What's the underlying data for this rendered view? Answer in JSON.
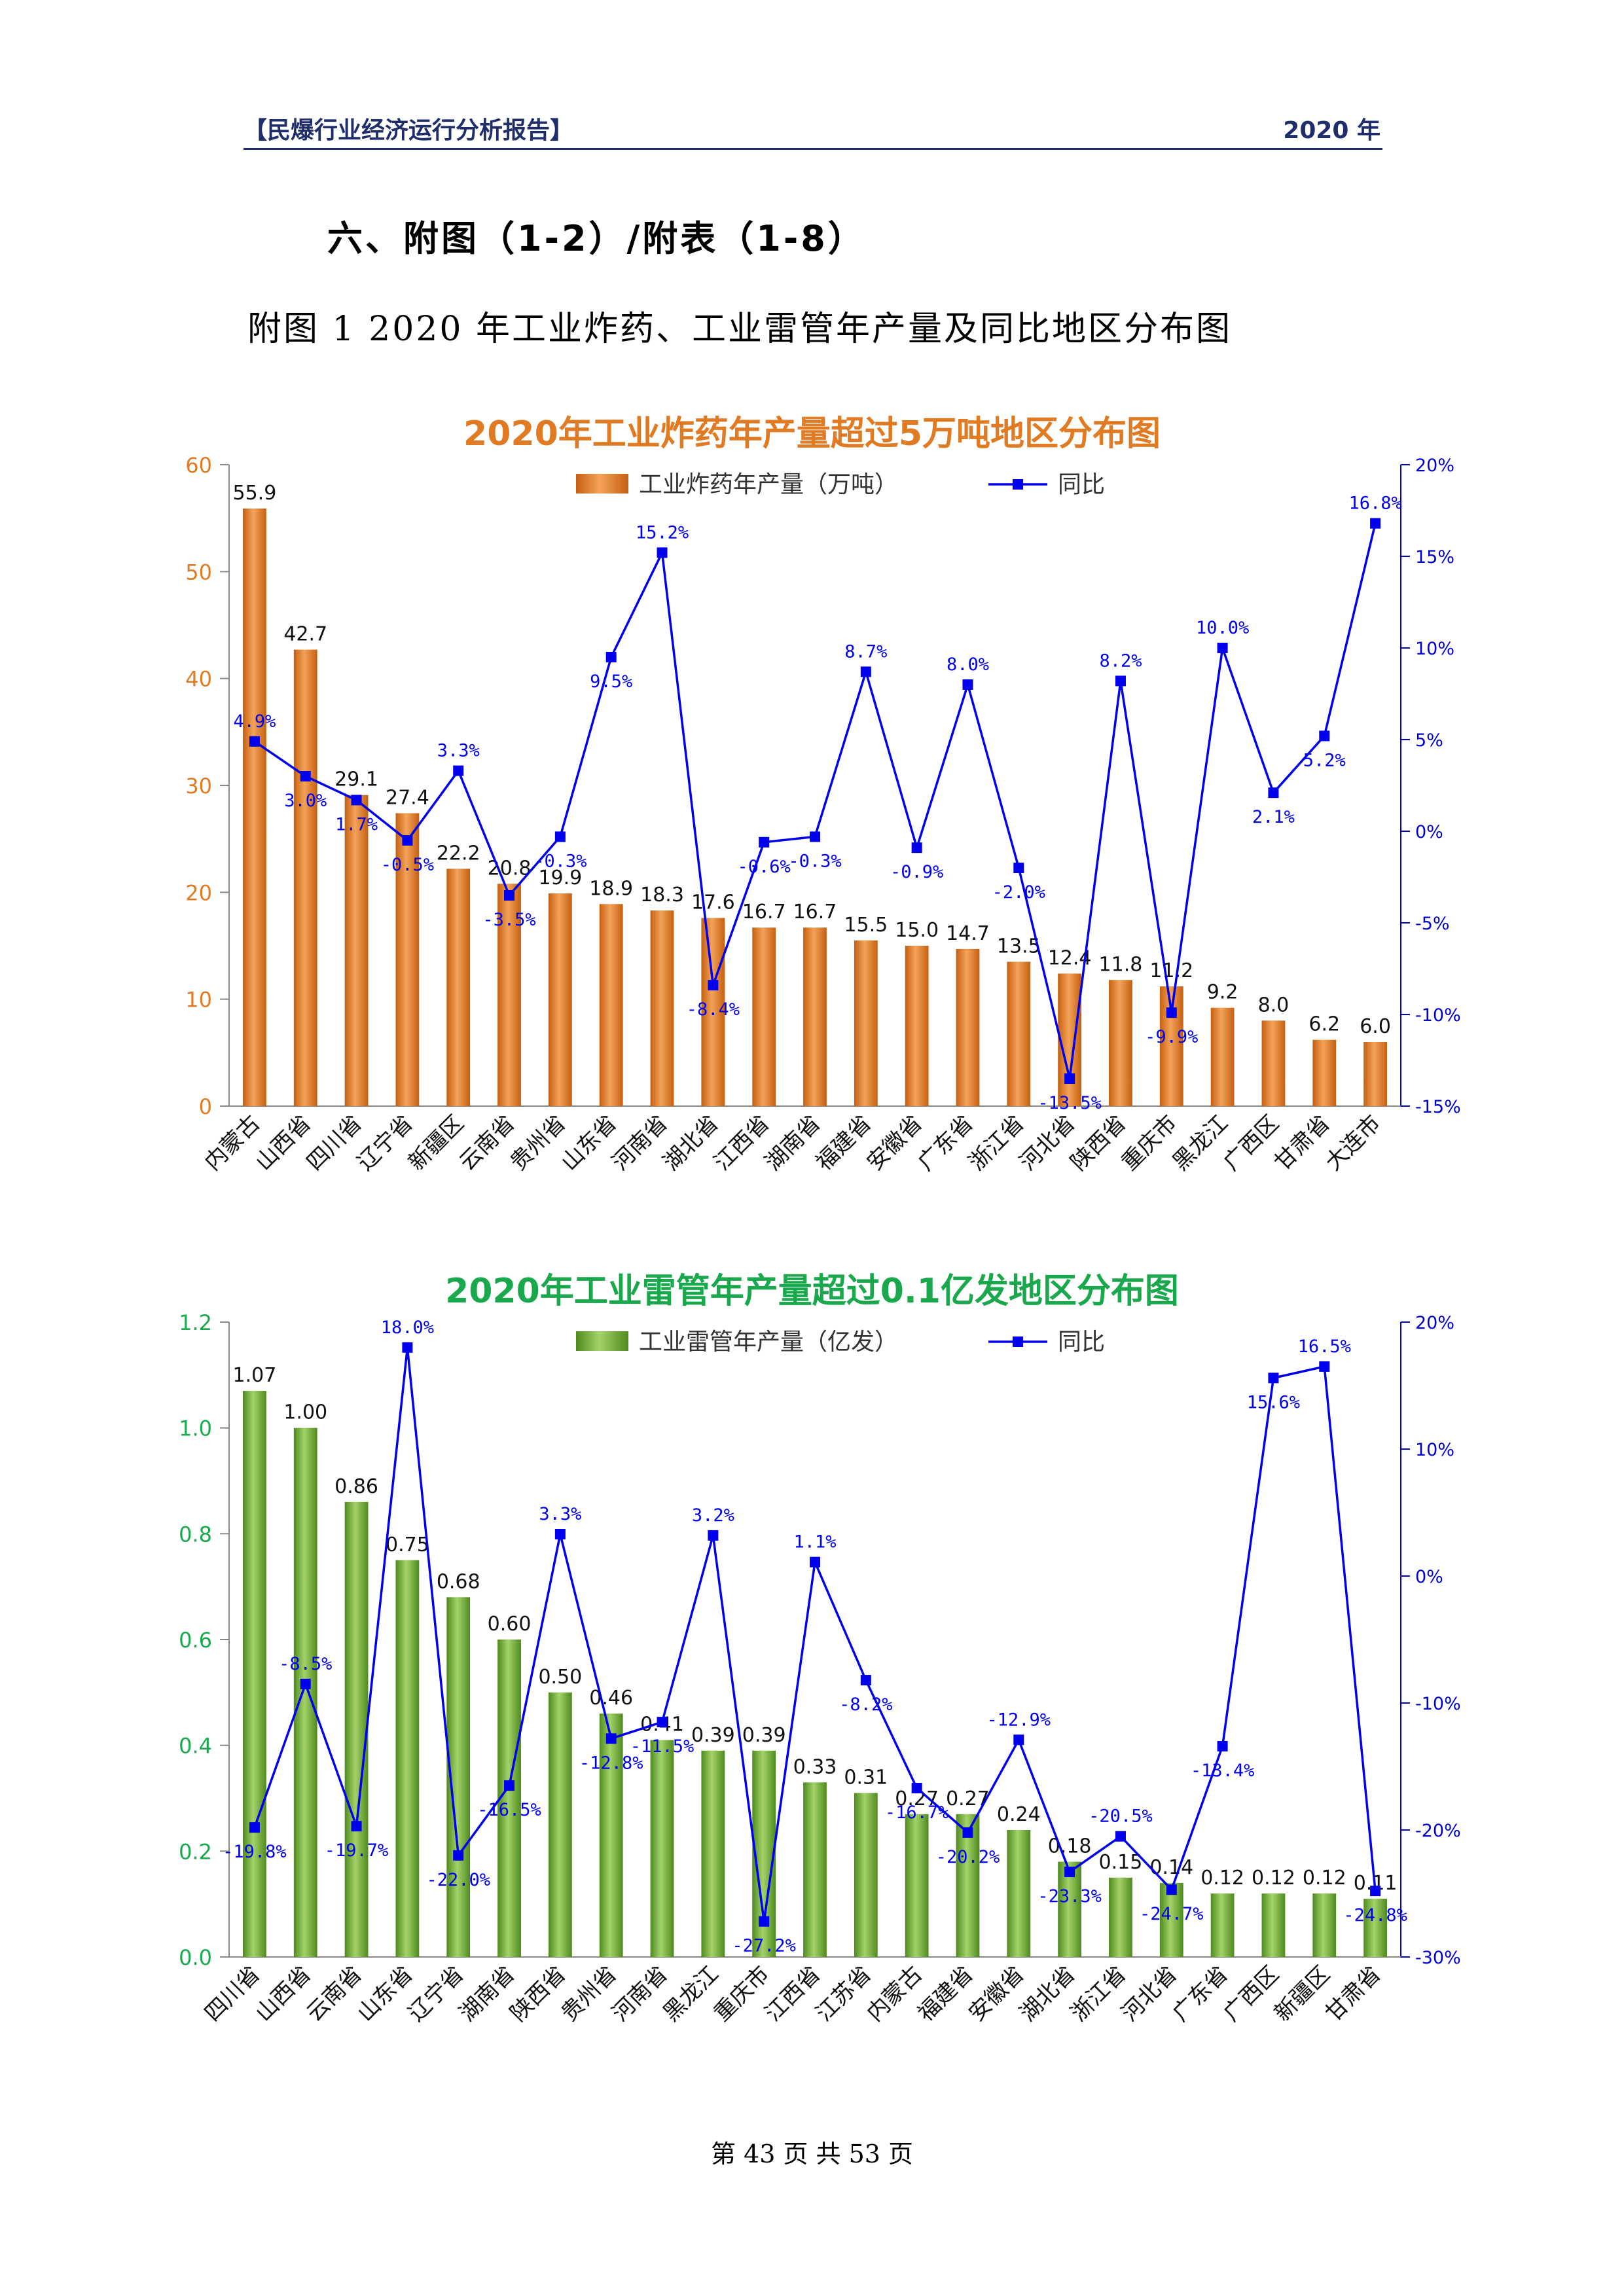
{
  "header": {
    "left": "【民爆行业经济运行分析报告】",
    "right": "2020 年"
  },
  "section_title": "六、附图（1-2）/附表（1-8）",
  "figure_caption": "附图 1    2020 年工业炸药、工业雷管年产量及同比地区分布图",
  "footer": "第 43 页 共 53 页",
  "colors": {
    "bar1": "#e07b24",
    "bar2": "#6fae2e",
    "line": "#0000ee",
    "axis_left1": "#e07b24",
    "axis_left2": "#1aa84d",
    "axis_right": "#0000cc"
  },
  "chart_data": [
    {
      "type": "bar",
      "title": "2020年工业炸药年产量超过5万吨地区分布图",
      "categories": [
        "内蒙古",
        "山西省",
        "四川省",
        "辽宁省",
        "新疆区",
        "云南省",
        "贵州省",
        "山东省",
        "河南省",
        "湖北省",
        "江西省",
        "湖南省",
        "福建省",
        "安徽省",
        "广东省",
        "浙江省",
        "河北省",
        "陕西省",
        "重庆市",
        "黑龙江",
        "广西区",
        "甘肃省",
        "大连市"
      ],
      "series": [
        {
          "name": "工业炸药年产量（万吨）",
          "axis": "left",
          "kind": "bar",
          "values": [
            55.9,
            42.7,
            29.1,
            27.4,
            22.2,
            20.8,
            19.9,
            18.9,
            18.3,
            17.6,
            16.7,
            16.7,
            15.5,
            15.0,
            14.7,
            13.5,
            12.4,
            11.8,
            11.2,
            9.2,
            8.0,
            6.2,
            6.0
          ],
          "labels": [
            "55.9",
            "42.7",
            "29.1",
            "27.4",
            "22.2",
            "20.8",
            "19.9",
            "18.9",
            "18.3",
            "17.6",
            "16.7",
            "16.7",
            "15.5",
            "15.0",
            "14.7",
            "13.5",
            "12.4",
            "11.8",
            "11.2",
            "9.2",
            "8.0",
            "6.2",
            "6.0"
          ]
        },
        {
          "name": "同比",
          "axis": "right",
          "kind": "line",
          "values": [
            4.9,
            3.0,
            1.7,
            -0.5,
            3.3,
            -3.5,
            -0.3,
            9.5,
            15.2,
            -8.4,
            -0.6,
            -0.3,
            8.7,
            -0.9,
            8.0,
            -2.0,
            -13.5,
            8.2,
            -9.9,
            10.0,
            2.1,
            5.2,
            16.8
          ],
          "labels": [
            "4.9%",
            "3.0%",
            "1.7%",
            "-0.5%",
            "3.3%",
            "-3.5%",
            "-0.3%",
            "9.5%",
            "15.2%",
            "-8.4%",
            "-0.6%",
            "-0.3%",
            "8.7%",
            "-0.9%",
            "8.0%",
            "-2.0%",
            "-13.5%",
            "8.2%",
            "-9.9%",
            "10.0%",
            "2.1%",
            "5.2%",
            "16.8%"
          ]
        }
      ],
      "ylim": [
        0,
        60
      ],
      "yticks": [
        "0",
        "10",
        "20",
        "30",
        "40",
        "50",
        "60"
      ],
      "y2lim": [
        -15,
        20
      ],
      "y2ticks": [
        "-15%",
        "-10%",
        "-5%",
        "0%",
        "5%",
        "10%",
        "15%",
        "20%"
      ],
      "legend": "top-center",
      "grid": false
    },
    {
      "type": "bar",
      "title": "2020年工业雷管年产量超过0.1亿发地区分布图",
      "categories": [
        "四川省",
        "山西省",
        "云南省",
        "山东省",
        "辽宁省",
        "湖南省",
        "陕西省",
        "贵州省",
        "河南省",
        "黑龙江",
        "重庆市",
        "江西省",
        "江苏省",
        "内蒙古",
        "福建省",
        "安徽省",
        "湖北省",
        "浙江省",
        "河北省",
        "广东省",
        "广西区",
        "新疆区",
        "甘肃省"
      ],
      "series": [
        {
          "name": "工业雷管年产量（亿发）",
          "axis": "left",
          "kind": "bar",
          "values": [
            1.07,
            1.0,
            0.86,
            0.75,
            0.68,
            0.6,
            0.5,
            0.46,
            0.41,
            0.39,
            0.39,
            0.33,
            0.31,
            0.27,
            0.27,
            0.24,
            0.18,
            0.15,
            0.14,
            0.12,
            0.12,
            0.12,
            0.11
          ],
          "labels": [
            "1.07",
            "1.00",
            "0.86",
            "0.75",
            "0.68",
            "0.60",
            "0.50",
            "0.46",
            "0.41",
            "0.39",
            "0.39",
            "0.33",
            "0.31",
            "0.27",
            "0.27",
            "0.24",
            "0.18",
            "0.15",
            "0.14",
            "0.12",
            "0.12",
            "0.12",
            "0.11"
          ]
        },
        {
          "name": "同比",
          "axis": "right",
          "kind": "line",
          "values": [
            -19.8,
            -8.5,
            -19.7,
            18.0,
            -22.0,
            -16.5,
            3.3,
            -12.8,
            -11.5,
            3.2,
            -27.2,
            1.1,
            -8.2,
            -16.7,
            -20.2,
            -12.9,
            -23.3,
            -20.5,
            -24.7,
            -13.4,
            15.6,
            16.5,
            -24.8
          ],
          "labels": [
            "-19.8%",
            "-8.5%",
            "-19.7%",
            "18.0%",
            "-22.0%",
            "-16.5%",
            "3.3%",
            "-12.8%",
            "-11.5%",
            "3.2%",
            "-27.2%",
            "1.1%",
            "-8.2%",
            "-16.7%",
            "-20.2%",
            "-12.9%",
            "-23.3%",
            "-20.5%",
            "-24.7%",
            "-13.4%",
            "15.6%",
            "16.5%",
            "-24.8%"
          ]
        }
      ],
      "ylim": [
        0,
        1.2
      ],
      "yticks": [
        "0.0",
        "0.2",
        "0.4",
        "0.6",
        "0.8",
        "1.0",
        "1.2"
      ],
      "y2lim": [
        -30,
        20
      ],
      "y2ticks": [
        "-30%",
        "-20%",
        "-10%",
        "0%",
        "10%",
        "20%"
      ],
      "legend": "top-center",
      "grid": false
    }
  ]
}
